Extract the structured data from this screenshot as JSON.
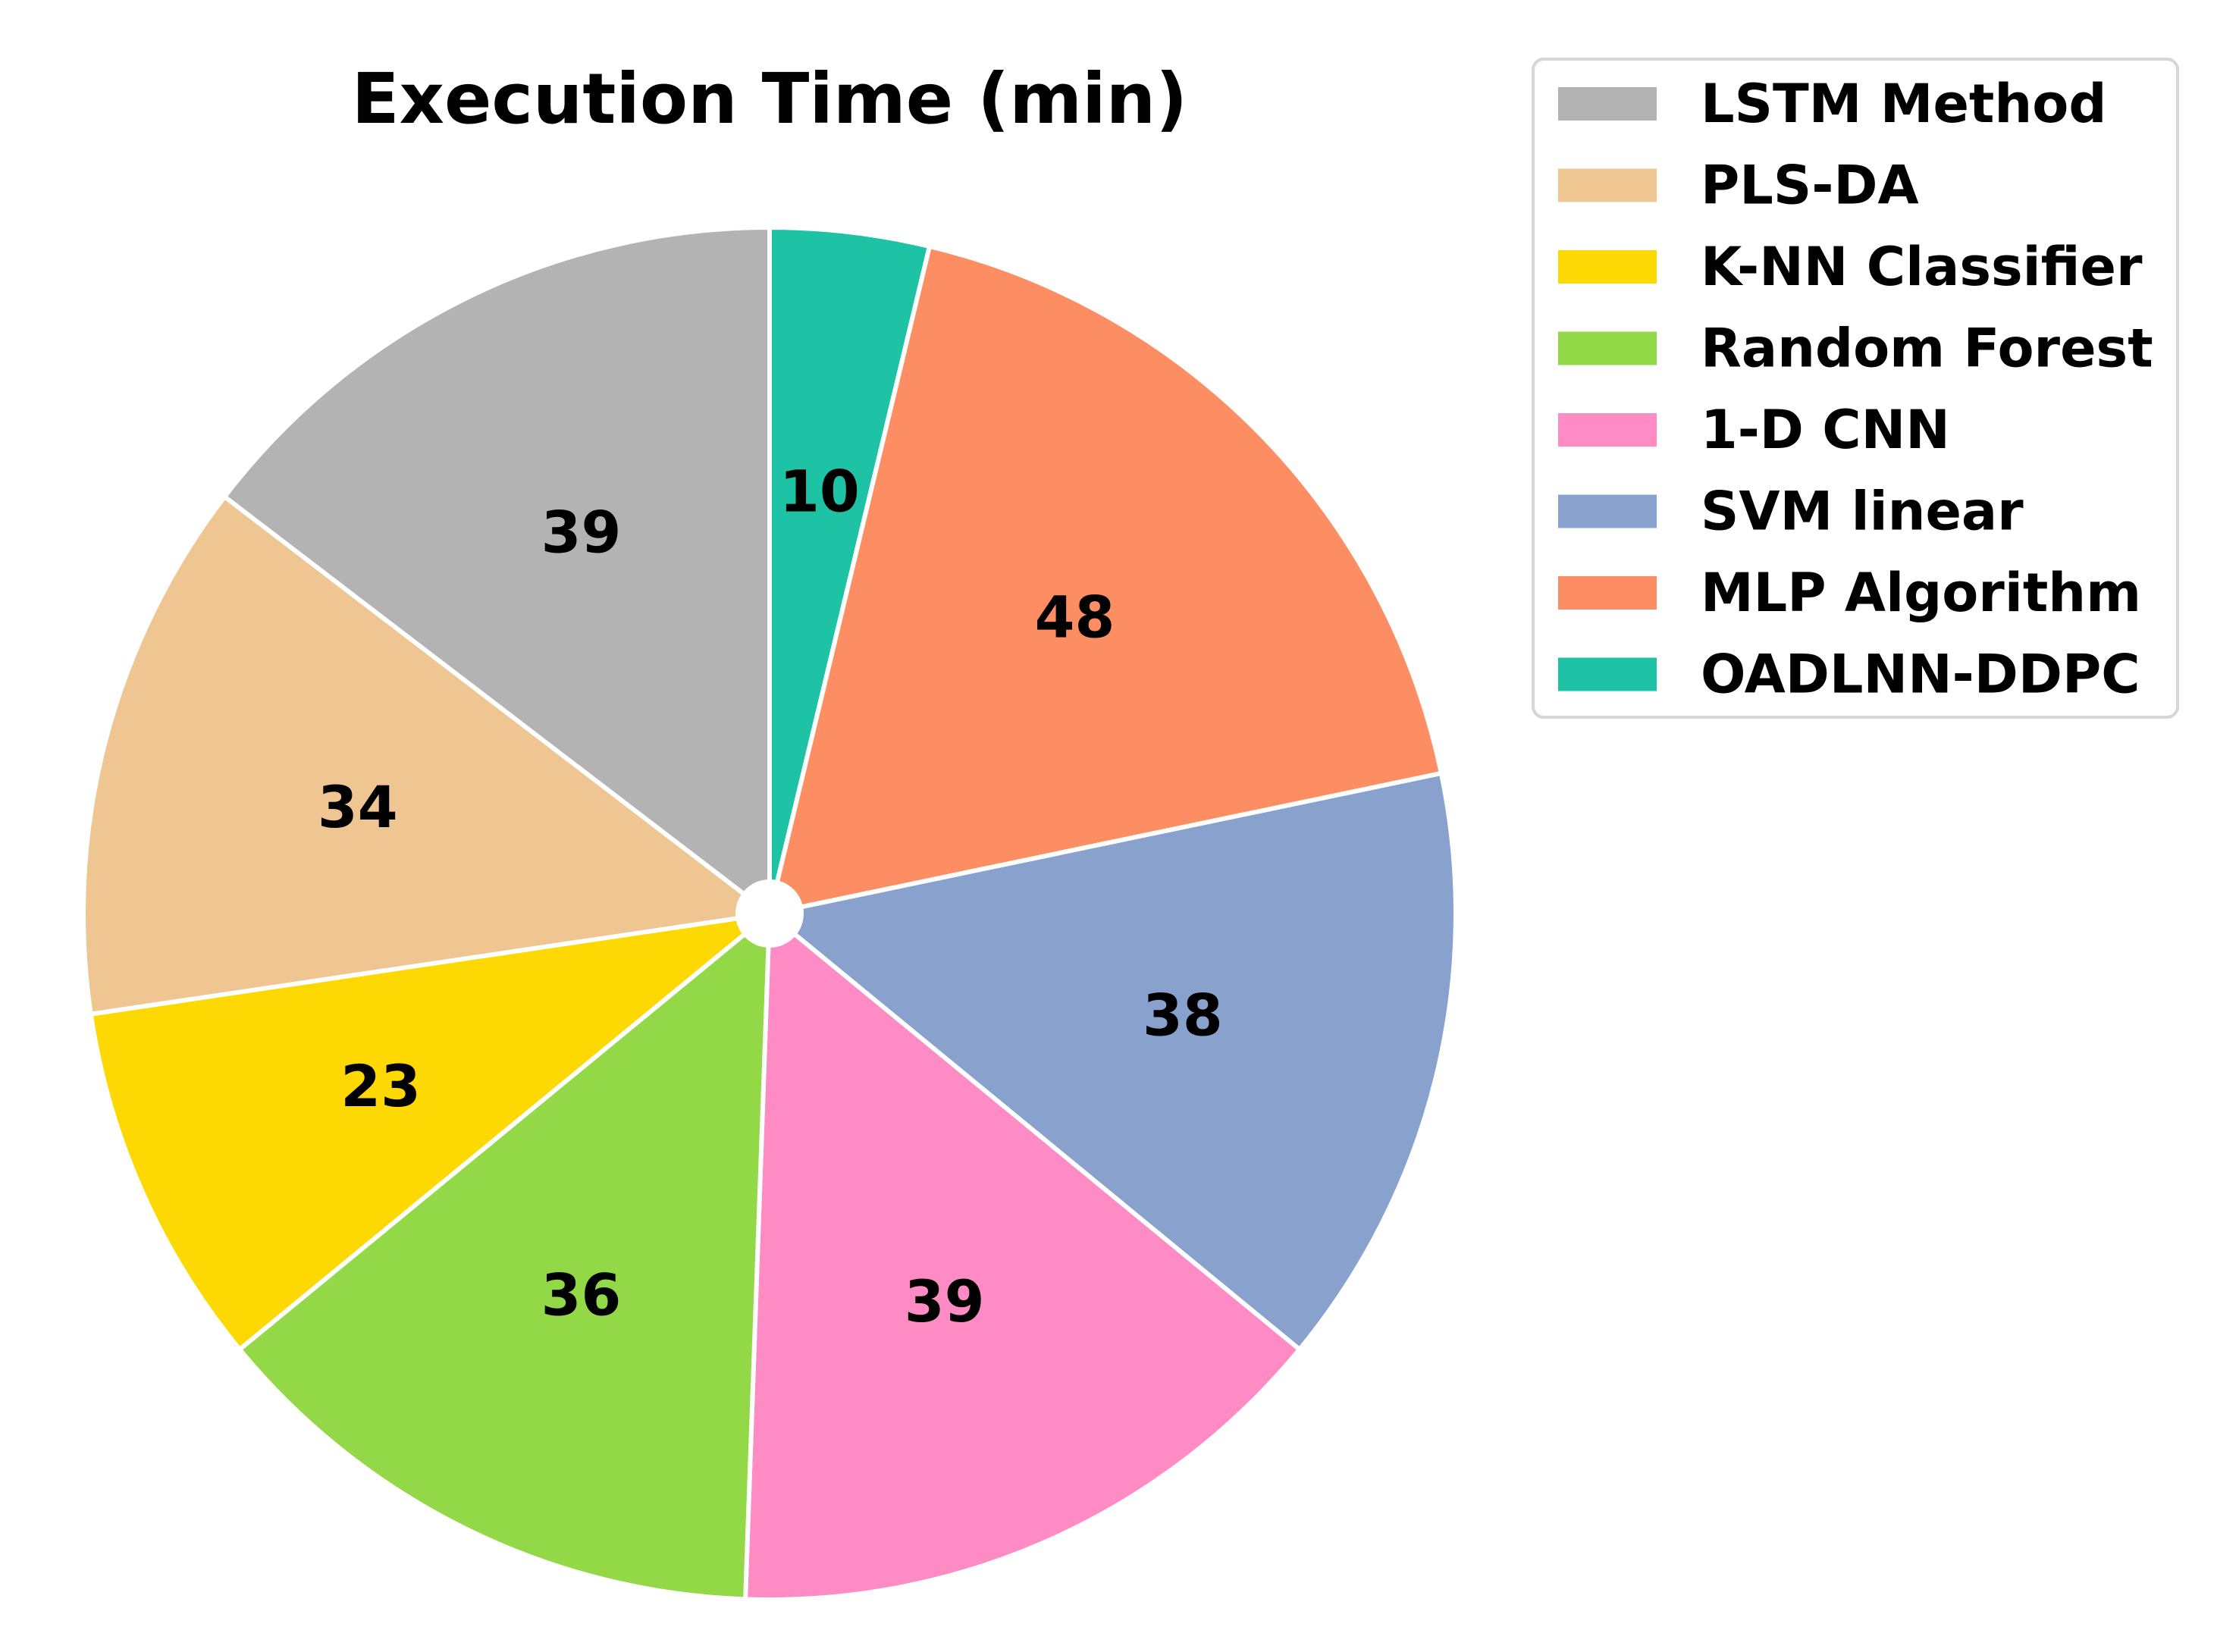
{
  "chart_data": {
    "type": "pie",
    "title": "Execution Time (min)",
    "start_angle_deg": 90,
    "direction": "clockwise",
    "legend_position": "top-right",
    "slices": [
      {
        "label": "OADLNN-DDPC",
        "value": 10,
        "color": "#1ec2a5"
      },
      {
        "label": "MLP Algorithm",
        "value": 48,
        "color": "#fd8d62"
      },
      {
        "label": "SVM linear",
        "value": 38,
        "color": "#88a1cd"
      },
      {
        "label": "1-D CNN",
        "value": 39,
        "color": "#fe8bc4"
      },
      {
        "label": "Random Forest",
        "value": 36,
        "color": "#93d846"
      },
      {
        "label": "K-NN Classifier",
        "value": 23,
        "color": "#fed802"
      },
      {
        "label": "PLS-DA",
        "value": 34,
        "color": "#efc592"
      },
      {
        "label": "LSTM Method",
        "value": 39,
        "color": "#b3b3b3"
      }
    ],
    "legend_order": [
      "LSTM Method",
      "PLS-DA",
      "K-NN Classifier",
      "Random Forest",
      "1-D CNN",
      "SVM linear",
      "MLP Algorithm",
      "OADLNN-DDPC"
    ]
  }
}
